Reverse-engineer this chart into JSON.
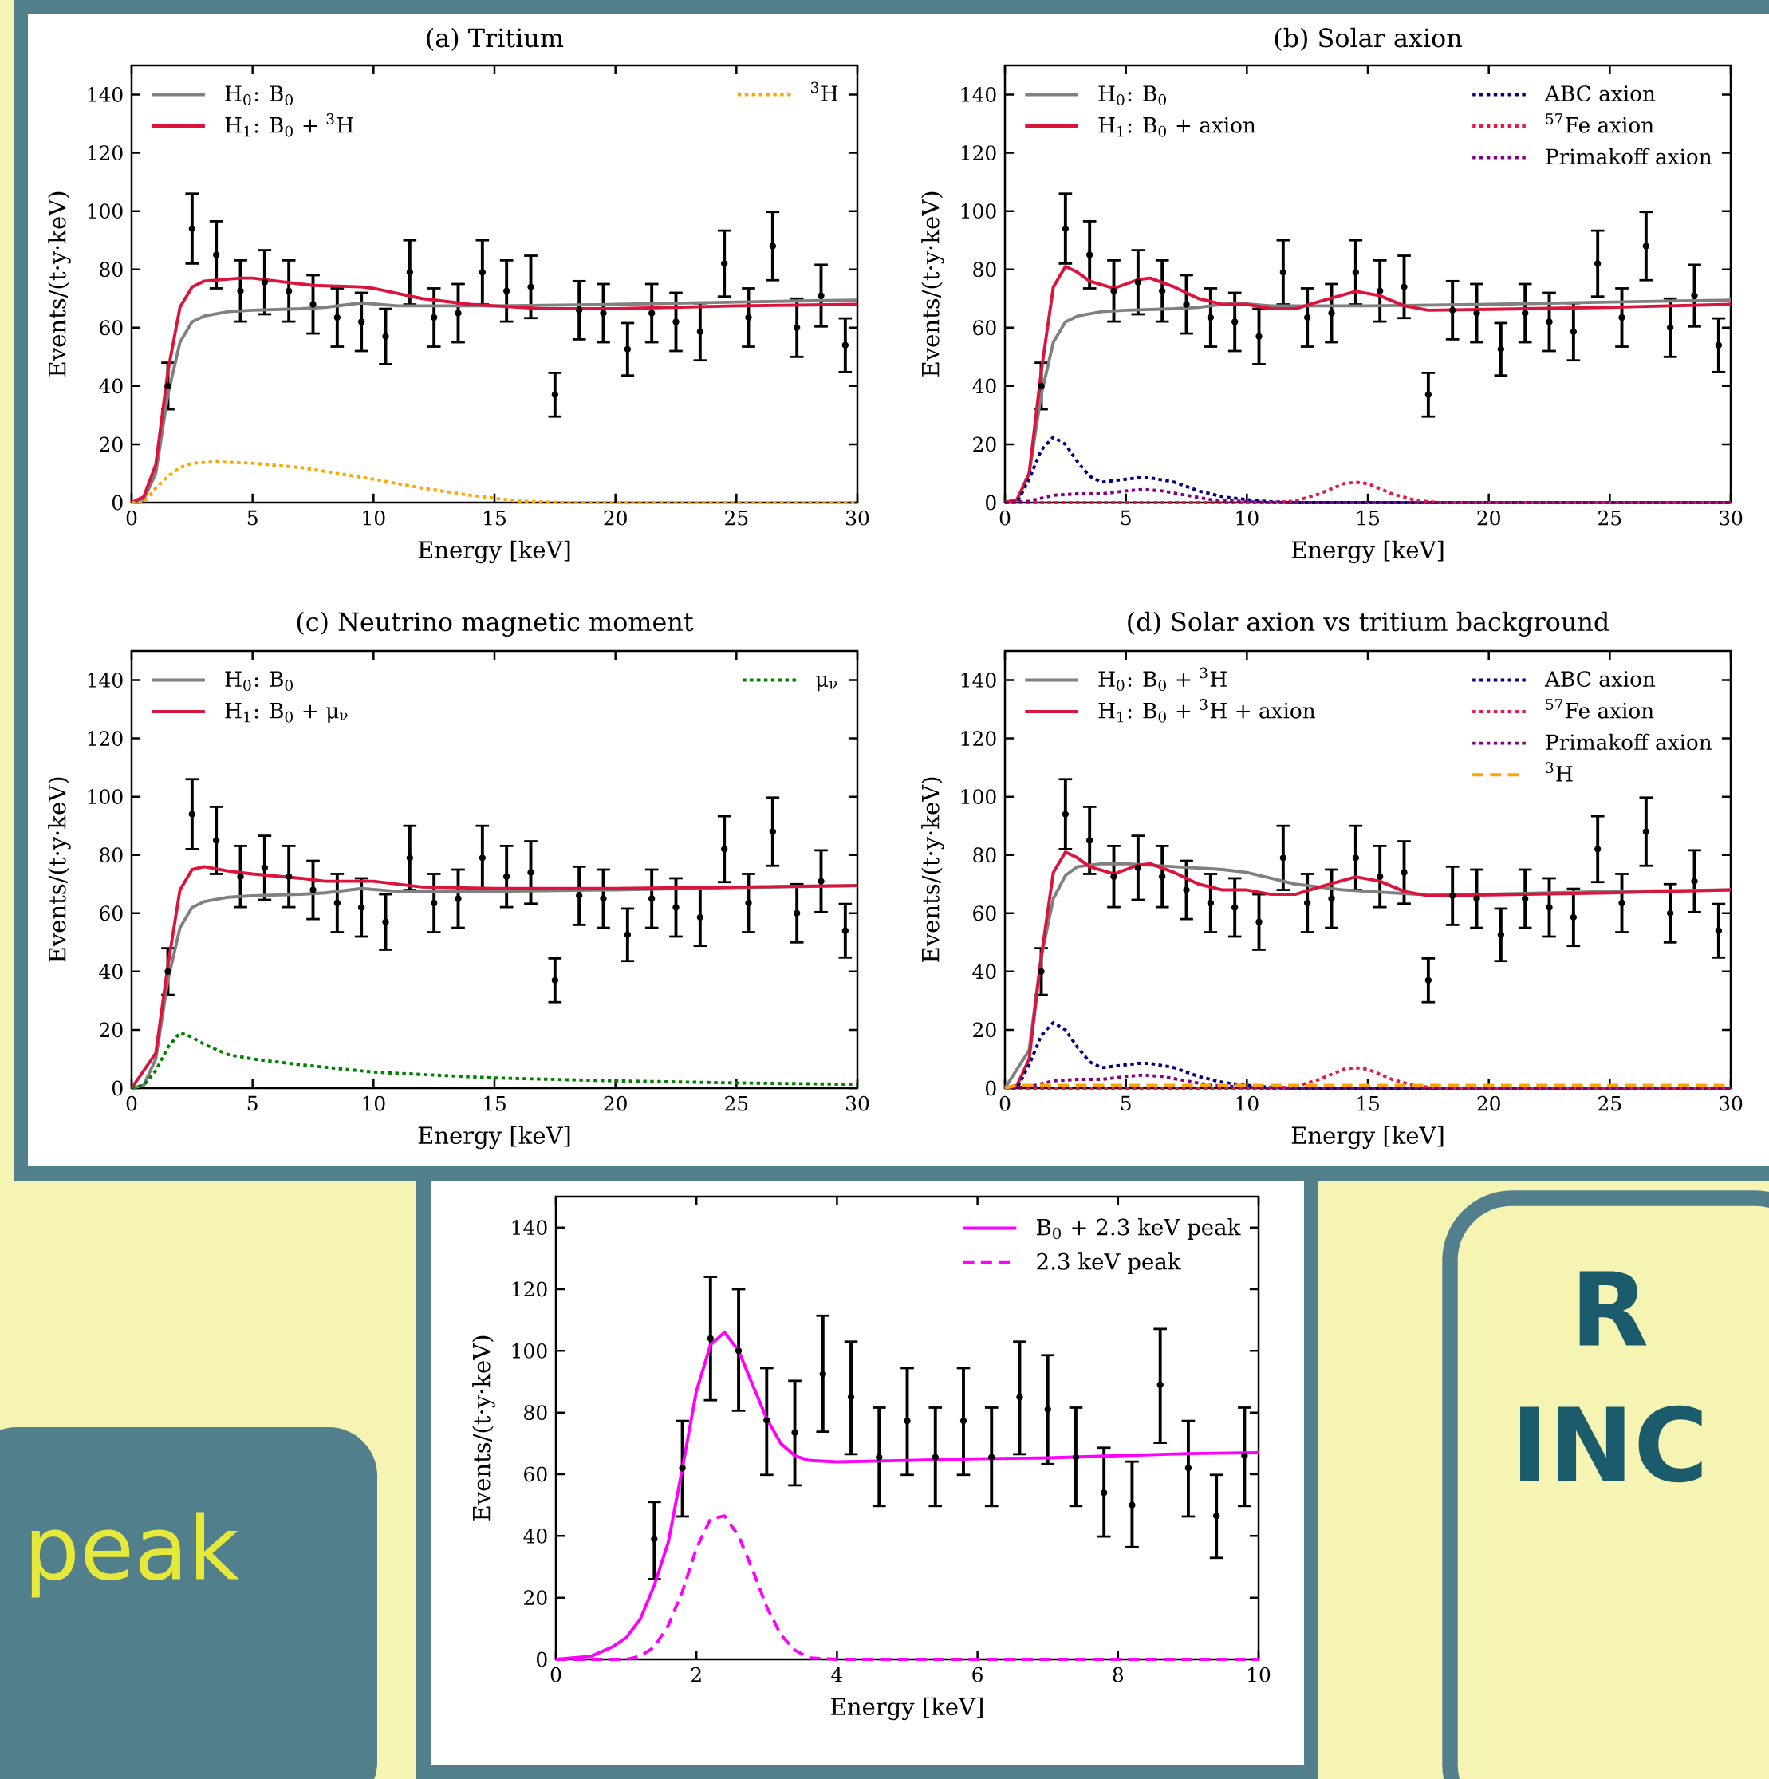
{
  "chart_data": [
    {
      "type": "line",
      "title": "(a) Tritium",
      "xlabel": "Energy [keV]",
      "ylabel": "Events/(t·y·keV)",
      "xlim": [
        0,
        30
      ],
      "ylim": [
        0,
        150
      ],
      "xticks": [
        0,
        5,
        10,
        15,
        20,
        25,
        30
      ],
      "yticks": [
        0,
        20,
        40,
        60,
        80,
        100,
        120,
        140
      ],
      "legend": "top",
      "series": [
        {
          "type": "scatter",
          "marker": "circle",
          "color": "#000000",
          "x": [
            1.5,
            2.5,
            3.5,
            4.5,
            5.5,
            6.5,
            7.5,
            8.5,
            9.5,
            10.5,
            11.5,
            12.5,
            13.5,
            14.5,
            15.5,
            16.5,
            17.5,
            18.5,
            19.5,
            20.5,
            21.5,
            22.5,
            23.5,
            24.5,
            25.5,
            26.5,
            27.5,
            28.5,
            29.5
          ],
          "values": [
            40,
            94,
            85,
            72.6,
            75.6,
            72.6,
            68,
            63.5,
            62,
            57,
            79,
            63.5,
            65,
            79,
            72.6,
            74,
            37,
            66,
            65,
            52.6,
            65,
            62,
            58.6,
            82,
            63.5,
            88,
            60,
            71,
            54
          ],
          "errors": [
            8,
            12,
            11.5,
            10.5,
            11,
            10.5,
            10,
            10,
            10,
            9.5,
            11,
            10,
            10,
            11,
            10.5,
            10.7,
            7.5,
            10,
            10,
            9,
            10,
            10,
            9.8,
            11.3,
            10,
            11.7,
            10,
            10.6,
            9.2
          ]
        },
        {
          "name": "H$_{0}$: B$_{0}$",
          "color": "#808080",
          "line_style": "solid",
          "x": [
            0,
            0.5,
            1,
            1.5,
            2,
            2.5,
            3,
            4,
            5,
            7,
            8,
            9.5,
            11,
            15,
            20,
            25,
            30
          ],
          "values": [
            0,
            1,
            10,
            37,
            55,
            62,
            64,
            65.5,
            66,
            66.5,
            67,
            68.5,
            67.5,
            67.5,
            68,
            68.8,
            69.5
          ]
        },
        {
          "name": "H$_{1}$: B$_{0}$ + $^{3}$H",
          "color": "#dc143c",
          "line_style": "solid",
          "x": [
            0,
            0.5,
            1,
            1.5,
            2,
            2.5,
            3,
            4.5,
            5,
            6,
            7.5,
            9.5,
            10,
            12,
            14,
            15,
            17,
            20,
            25,
            30
          ],
          "values": [
            0,
            2,
            13,
            45,
            67,
            74,
            76,
            77,
            77,
            76,
            74.5,
            74,
            73.5,
            70,
            68,
            67.5,
            66.5,
            66.5,
            67.5,
            68
          ]
        },
        {
          "name": "$^{3}$H",
          "color": "#ffa500",
          "line_style": "dotted",
          "x": [
            0,
            0.5,
            1,
            1.5,
            2,
            2.5,
            3.5,
            5,
            7,
            10,
            12,
            14,
            15,
            16,
            18,
            30
          ],
          "values": [
            0,
            0,
            5,
            9,
            12,
            13.5,
            14,
            13.5,
            12,
            8,
            5,
            2.5,
            1.5,
            0.5,
            0,
            0
          ]
        }
      ]
    },
    {
      "type": "line",
      "title": "(b) Solar axion",
      "xlabel": "Energy [keV]",
      "ylabel": "Events/(t·y·keV)",
      "xlim": [
        0,
        30
      ],
      "ylim": [
        0,
        150
      ],
      "xticks": [
        0,
        5,
        10,
        15,
        20,
        25,
        30
      ],
      "yticks": [
        0,
        20,
        40,
        60,
        80,
        100,
        120,
        140
      ],
      "legend": "top",
      "series": [
        {
          "type": "scatter",
          "marker": "circle",
          "color": "#000000",
          "x": [
            1.5,
            2.5,
            3.5,
            4.5,
            5.5,
            6.5,
            7.5,
            8.5,
            9.5,
            10.5,
            11.5,
            12.5,
            13.5,
            14.5,
            15.5,
            16.5,
            17.5,
            18.5,
            19.5,
            20.5,
            21.5,
            22.5,
            23.5,
            24.5,
            25.5,
            26.5,
            27.5,
            28.5,
            29.5
          ],
          "values": [
            40,
            94,
            85,
            72.6,
            75.6,
            72.6,
            68,
            63.5,
            62,
            57,
            79,
            63.5,
            65,
            79,
            72.6,
            74,
            37,
            66,
            65,
            52.6,
            65,
            62,
            58.6,
            82,
            63.5,
            88,
            60,
            71,
            54
          ],
          "errors": [
            8,
            12,
            11.5,
            10.5,
            11,
            10.5,
            10,
            10,
            10,
            9.5,
            11,
            10,
            10,
            11,
            10.5,
            10.7,
            7.5,
            10,
            10,
            9,
            10,
            10,
            9.8,
            11.3,
            10,
            11.7,
            10,
            10.6,
            9.2
          ]
        },
        {
          "name": "H$_{0}$: B$_{0}$",
          "color": "#808080",
          "line_style": "solid",
          "x": [
            0,
            0.5,
            1,
            1.5,
            2,
            2.5,
            3,
            4,
            5,
            7,
            8,
            9.5,
            11,
            15,
            20,
            25,
            30
          ],
          "values": [
            0,
            1,
            10,
            37,
            55,
            62,
            64,
            65.5,
            66,
            66.5,
            67,
            68.5,
            67.5,
            67.5,
            68,
            68.8,
            69.5
          ]
        },
        {
          "name": "H$_{1}$: B$_{0}$ + axion",
          "color": "#dc143c",
          "line_style": "solid",
          "x": [
            0,
            0.5,
            1,
            1.5,
            2,
            2.5,
            3,
            3.5,
            4.5,
            5.5,
            6,
            7,
            8,
            9,
            10,
            11,
            12,
            13,
            14.5,
            15.5,
            16.5,
            17.5,
            20,
            25,
            30
          ],
          "values": [
            0,
            1,
            10,
            45,
            74,
            81,
            79,
            76,
            73.5,
            76.5,
            77,
            74,
            70,
            68,
            68,
            66.5,
            66.5,
            69,
            72.5,
            71,
            67.5,
            66,
            66.3,
            67,
            68
          ]
        },
        {
          "name": "ABC axion",
          "color": "#000080",
          "line_style": "dotted",
          "x": [
            0,
            0.5,
            1,
            1.5,
            2,
            2.5,
            3,
            3.5,
            4,
            5,
            5.5,
            6,
            7,
            8,
            9,
            10,
            11,
            12,
            30
          ],
          "values": [
            0,
            0,
            8,
            18,
            22.5,
            20,
            14,
            9,
            7,
            8,
            8.5,
            8.5,
            7,
            4,
            2,
            1,
            0.3,
            0,
            0
          ]
        },
        {
          "name": "$^{57}$Fe axion",
          "color": "#e8174a",
          "line_style": "dotted",
          "x": [
            0,
            11,
            12,
            13,
            14,
            14.5,
            15,
            16,
            17,
            18,
            30
          ],
          "values": [
            0,
            0,
            0.5,
            3,
            6.5,
            7,
            6.5,
            3,
            0.7,
            0,
            0
          ]
        },
        {
          "name": "Primakoff axion",
          "color": "#800080",
          "line_style": "dotted",
          "x": [
            0,
            1,
            2,
            3,
            4,
            5,
            5.7,
            6.5,
            7.5,
            8.5,
            10,
            11,
            30
          ],
          "values": [
            0,
            0.5,
            2.5,
            3,
            3,
            4,
            4.5,
            4,
            2.5,
            1,
            0.3,
            0,
            0
          ]
        }
      ]
    },
    {
      "type": "line",
      "title": "(c) Neutrino magnetic moment",
      "xlabel": "Energy [keV]",
      "ylabel": "Events/(t·y·keV)",
      "xlim": [
        0,
        30
      ],
      "ylim": [
        0,
        150
      ],
      "xticks": [
        0,
        5,
        10,
        15,
        20,
        25,
        30
      ],
      "yticks": [
        0,
        20,
        40,
        60,
        80,
        100,
        120,
        140
      ],
      "legend": "top",
      "series": [
        {
          "type": "scatter",
          "marker": "circle",
          "color": "#000000",
          "x": [
            1.5,
            2.5,
            3.5,
            4.5,
            5.5,
            6.5,
            7.5,
            8.5,
            9.5,
            10.5,
            11.5,
            12.5,
            13.5,
            14.5,
            15.5,
            16.5,
            17.5,
            18.5,
            19.5,
            20.5,
            21.5,
            22.5,
            23.5,
            24.5,
            25.5,
            26.5,
            27.5,
            28.5,
            29.5
          ],
          "values": [
            40,
            94,
            85,
            72.6,
            75.6,
            72.6,
            68,
            63.5,
            62,
            57,
            79,
            63.5,
            65,
            79,
            72.6,
            74,
            37,
            66,
            65,
            52.6,
            65,
            62,
            58.6,
            82,
            63.5,
            88,
            60,
            71,
            54
          ],
          "errors": [
            8,
            12,
            11.5,
            10.5,
            11,
            10.5,
            10,
            10,
            10,
            9.5,
            11,
            10,
            10,
            11,
            10.5,
            10.7,
            7.5,
            10,
            10,
            9,
            10,
            10,
            9.8,
            11.3,
            10,
            11.7,
            10,
            10.6,
            9.2
          ]
        },
        {
          "name": "H$_{0}$: B$_{0}$",
          "color": "#808080",
          "line_style": "solid",
          "x": [
            0,
            0.5,
            1,
            1.5,
            2,
            2.5,
            3,
            4,
            5,
            7,
            8,
            9.5,
            11,
            15,
            20,
            25,
            30
          ],
          "values": [
            0,
            1,
            10,
            37,
            55,
            62,
            64,
            65.5,
            66,
            66.5,
            67,
            68.5,
            67.5,
            67.5,
            68,
            68.8,
            69.5
          ]
        },
        {
          "name": "H$_{1}$: B$_{0}$ + μ$_{ν}$",
          "color": "#dc143c",
          "line_style": "solid",
          "x": [
            0,
            1,
            1.5,
            2,
            2.5,
            3,
            4,
            5,
            7,
            8,
            10,
            12,
            15,
            20,
            25,
            30
          ],
          "values": [
            0,
            12,
            42,
            68,
            75,
            76,
            74.5,
            73.5,
            72,
            71,
            71,
            69,
            68.5,
            68.5,
            69,
            69.5
          ]
        },
        {
          "name": "μ$_{ν}$",
          "color": "#008000",
          "line_style": "dotted",
          "x": [
            0,
            0.5,
            1,
            1.5,
            2,
            2.5,
            3,
            4,
            5,
            7,
            10,
            15,
            20,
            25,
            30
          ],
          "values": [
            0,
            1,
            6,
            14,
            19,
            17.5,
            15,
            11.5,
            10,
            8,
            5.5,
            3.5,
            2.5,
            1.8,
            1.3
          ]
        }
      ]
    },
    {
      "type": "line",
      "title": "(d) Solar axion vs tritium background",
      "xlabel": "Energy [keV]",
      "ylabel": "Events/(t·y·keV)",
      "xlim": [
        0,
        30
      ],
      "ylim": [
        0,
        150
      ],
      "xticks": [
        0,
        5,
        10,
        15,
        20,
        25,
        30
      ],
      "yticks": [
        0,
        20,
        40,
        60,
        80,
        100,
        120,
        140
      ],
      "legend": "top",
      "series": [
        {
          "type": "scatter",
          "marker": "circle",
          "color": "#000000",
          "x": [
            1.5,
            2.5,
            3.5,
            4.5,
            5.5,
            6.5,
            7.5,
            8.5,
            9.5,
            10.5,
            11.5,
            12.5,
            13.5,
            14.5,
            15.5,
            16.5,
            17.5,
            18.5,
            19.5,
            20.5,
            21.5,
            22.5,
            23.5,
            24.5,
            25.5,
            26.5,
            27.5,
            28.5,
            29.5
          ],
          "values": [
            40,
            94,
            85,
            72.6,
            75.6,
            72.6,
            68,
            63.5,
            62,
            57,
            79,
            63.5,
            65,
            79,
            72.6,
            74,
            37,
            66,
            65,
            52.6,
            65,
            62,
            58.6,
            82,
            63.5,
            88,
            60,
            71,
            54
          ],
          "errors": [
            8,
            12,
            11.5,
            10.5,
            11,
            10.5,
            10,
            10,
            10,
            9.5,
            11,
            10,
            10,
            11,
            10.5,
            10.7,
            7.5,
            10,
            10,
            9,
            10,
            10,
            9.8,
            11.3,
            10,
            11.7,
            10,
            10.6,
            9.2
          ]
        },
        {
          "name": "H$_{0}$: B$_{0}$ + $^{3}$H",
          "color": "#808080",
          "line_style": "solid",
          "x": [
            0,
            1,
            1.5,
            2,
            2.5,
            3,
            4,
            5,
            7,
            9,
            10,
            11,
            12,
            14,
            15,
            17,
            20,
            25,
            30
          ],
          "values": [
            0,
            13,
            45,
            65,
            73,
            76,
            77,
            77,
            76,
            75,
            74,
            72,
            70,
            68,
            67.5,
            66.5,
            66.5,
            67.5,
            68
          ]
        },
        {
          "name": "H$_{1}$: B$_{0}$ + $^{3}$H + axion",
          "color": "#dc143c",
          "line_style": "solid",
          "x": [
            0,
            0.5,
            1,
            1.5,
            2,
            2.5,
            3,
            3.5,
            4.5,
            5.5,
            6,
            7,
            8,
            9,
            10,
            11,
            12,
            13,
            14.5,
            15.5,
            16.5,
            17.5,
            20,
            25,
            30
          ],
          "values": [
            0,
            1,
            10,
            45,
            74,
            81,
            79,
            76,
            73.5,
            76.5,
            77,
            74,
            70,
            68,
            68,
            66.5,
            66.5,
            69,
            72.5,
            71,
            67.5,
            66,
            66.3,
            67,
            68
          ]
        },
        {
          "name": "ABC axion",
          "color": "#000080",
          "line_style": "dotted",
          "x": [
            0,
            0.5,
            1,
            1.5,
            2,
            2.5,
            3,
            3.5,
            4,
            5,
            5.5,
            6,
            7,
            8,
            9,
            10,
            11,
            12,
            30
          ],
          "values": [
            0,
            0,
            8,
            18,
            22.5,
            20,
            14,
            9,
            7,
            8,
            8.5,
            8.5,
            7,
            4,
            2,
            1,
            0.3,
            0,
            0
          ]
        },
        {
          "name": "$^{57}$Fe axion",
          "color": "#e8174a",
          "line_style": "dotted",
          "x": [
            0,
            11,
            12,
            13,
            14,
            14.5,
            15,
            16,
            17,
            18,
            30
          ],
          "values": [
            0,
            0,
            0.5,
            3,
            6.5,
            7,
            6.5,
            3,
            0.7,
            0,
            0
          ]
        },
        {
          "name": "Primakoff axion",
          "color": "#800080",
          "line_style": "dotted",
          "x": [
            0,
            1,
            2,
            3,
            4,
            5,
            5.7,
            6.5,
            7.5,
            8.5,
            10,
            11,
            30
          ],
          "values": [
            0,
            0.5,
            2.5,
            3,
            3,
            4,
            4.5,
            4,
            2.5,
            1,
            0.3,
            0,
            0
          ]
        },
        {
          "name": "$^{3}$H",
          "color": "#ffa500",
          "line_style": "dashed",
          "x": [
            0,
            0.5,
            30
          ],
          "values": [
            0,
            1,
            1
          ]
        }
      ]
    },
    {
      "type": "other",
      "annotations": [
        "peak"
      ]
    },
    {
      "type": "line",
      "xlabel": "Energy [keV]",
      "ylabel": "Events/(t·y·keV)",
      "xlim": [
        0,
        10
      ],
      "ylim": [
        0,
        150
      ],
      "xticks": [
        0,
        2,
        4,
        6,
        8,
        10
      ],
      "yticks": [
        0,
        20,
        40,
        60,
        80,
        100,
        120,
        140
      ],
      "legend": "top right",
      "series": [
        {
          "type": "scatter",
          "marker": "circle",
          "color": "#000000",
          "x": [
            1.4,
            1.8,
            2.2,
            2.6,
            3.0,
            3.4,
            3.8,
            4.2,
            4.6,
            5.0,
            5.4,
            5.8,
            6.2,
            6.6,
            7.0,
            7.4,
            7.8,
            8.2,
            8.6,
            9.0,
            9.4,
            9.8
          ],
          "values": [
            39,
            62,
            104,
            100,
            77.5,
            73.5,
            92.5,
            85,
            65.5,
            77.3,
            65.5,
            77.3,
            65.5,
            85,
            81,
            65.5,
            54,
            50,
            89,
            62,
            46.5,
            66
          ],
          "errors": [
            [
              26,
              51
            ],
            [
              46.3,
              77.3
            ],
            [
              84,
              124
            ],
            [
              80.6,
              120
            ],
            [
              59.8,
              94.4
            ],
            [
              56.4,
              90.3
            ],
            [
              73.8,
              111.4
            ],
            [
              66.5,
              103
            ],
            [
              49.7,
              81.6
            ],
            [
              59.8,
              94.4
            ],
            [
              49.7,
              81.6
            ],
            [
              59.8,
              94.4
            ],
            [
              49.7,
              81.6
            ],
            [
              66.5,
              103
            ],
            [
              63.3,
              98.6
            ],
            [
              49.7,
              81.6
            ],
            [
              39.8,
              68.6
            ],
            [
              36.4,
              64.1
            ],
            [
              70.2,
              107.1
            ],
            [
              46.3,
              77.3
            ],
            [
              32.9,
              59.8
            ],
            [
              49.7,
              81.6
            ]
          ]
        },
        {
          "name": "B$_{0}$ + 2.3 keV peak",
          "color": "#ff00ff",
          "line_style": "solid",
          "x": [
            0,
            0.5,
            0.8,
            1,
            1.2,
            1.4,
            1.6,
            1.8,
            2.0,
            2.2,
            2.4,
            2.6,
            2.8,
            3.0,
            3.2,
            3.4,
            3.6,
            4,
            5,
            6,
            7,
            8,
            9,
            10
          ],
          "values": [
            0,
            1,
            4,
            7,
            13,
            24,
            38,
            62,
            87,
            102,
            106,
            100,
            89,
            78,
            70,
            66,
            64.5,
            64,
            64.5,
            65,
            65.3,
            66,
            66.7,
            67
          ]
        },
        {
          "name": "2.3 keV peak",
          "color": "#ff00ff",
          "line_style": "dashed",
          "x": [
            0,
            1,
            1.2,
            1.4,
            1.6,
            1.8,
            2.0,
            2.2,
            2.4,
            2.6,
            2.8,
            3.0,
            3.2,
            3.4,
            3.6,
            4,
            10
          ],
          "values": [
            0,
            0,
            1,
            4,
            11,
            22,
            36,
            45.5,
            46.5,
            40,
            29,
            17,
            8,
            3,
            0.5,
            0,
            0
          ]
        }
      ]
    },
    {
      "type": "other",
      "annotations": [
        "R",
        "INC"
      ]
    }
  ]
}
